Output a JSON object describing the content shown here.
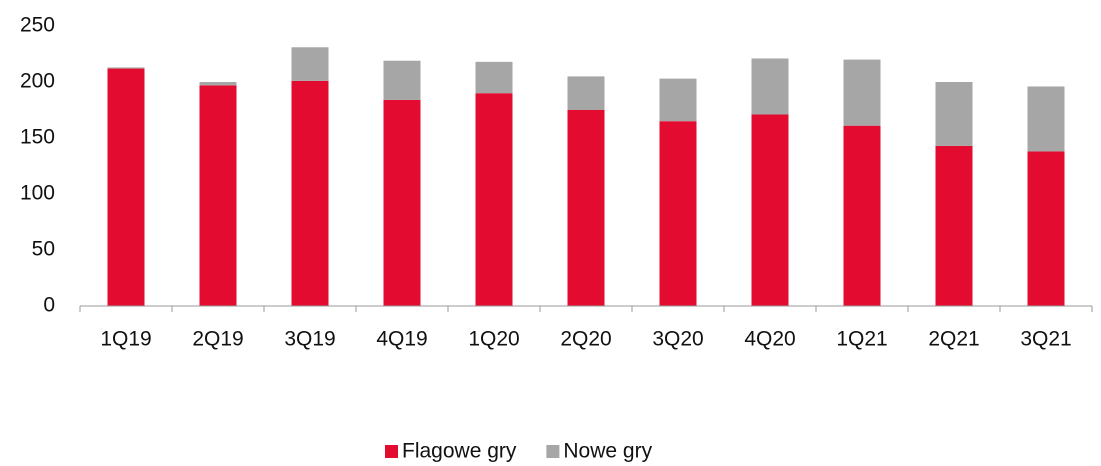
{
  "chart_data": {
    "type": "stacked_bar",
    "categories": [
      "1Q19",
      "2Q19",
      "3Q19",
      "4Q19",
      "1Q20",
      "2Q20",
      "3Q20",
      "4Q20",
      "1Q21",
      "2Q21",
      "3Q21"
    ],
    "series": [
      {
        "name": "Flagowe gry",
        "color": "#e30b2f",
        "values": [
          212,
          197,
          201,
          184,
          190,
          175,
          165,
          171,
          161,
          143,
          138
        ]
      },
      {
        "name": "Nowe gry",
        "color": "#a6a6a6",
        "values": [
          1,
          3,
          30,
          35,
          28,
          30,
          38,
          50,
          59,
          57,
          58
        ]
      }
    ],
    "ylim": [
      0,
      250
    ],
    "yticks": [
      0,
      50,
      100,
      150,
      200,
      250
    ],
    "grid": false,
    "legend": "bottom"
  }
}
